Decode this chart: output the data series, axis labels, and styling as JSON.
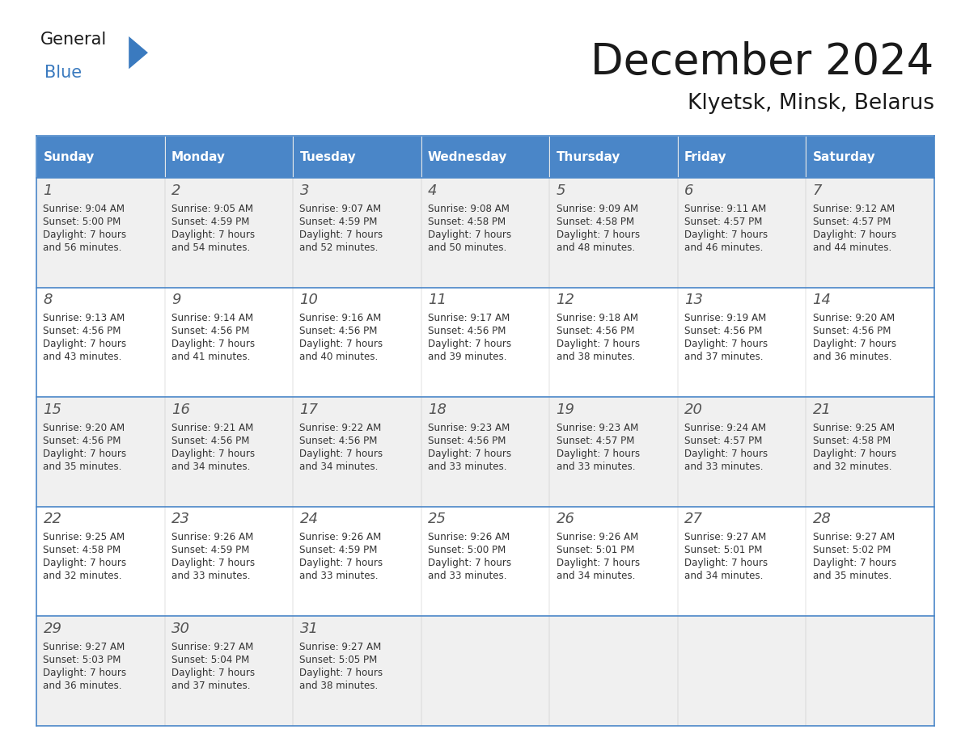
{
  "title": "December 2024",
  "subtitle": "Klyetsk, Minsk, Belarus",
  "days_of_week": [
    "Sunday",
    "Monday",
    "Tuesday",
    "Wednesday",
    "Thursday",
    "Friday",
    "Saturday"
  ],
  "header_bg_color": "#4a86c8",
  "header_text_color": "#ffffff",
  "cell_bg_even": "#f0f0f0",
  "cell_bg_odd": "#ffffff",
  "cell_border_color": "#4a86c8",
  "day_num_color": "#555555",
  "info_text_color": "#333333",
  "title_color": "#1a1a1a",
  "calendar_data": [
    [
      {
        "day": 1,
        "sunrise": "9:04 AM",
        "sunset": "5:00 PM",
        "daylight_line1": "Daylight: 7 hours",
        "daylight_line2": "and 56 minutes."
      },
      {
        "day": 2,
        "sunrise": "9:05 AM",
        "sunset": "4:59 PM",
        "daylight_line1": "Daylight: 7 hours",
        "daylight_line2": "and 54 minutes."
      },
      {
        "day": 3,
        "sunrise": "9:07 AM",
        "sunset": "4:59 PM",
        "daylight_line1": "Daylight: 7 hours",
        "daylight_line2": "and 52 minutes."
      },
      {
        "day": 4,
        "sunrise": "9:08 AM",
        "sunset": "4:58 PM",
        "daylight_line1": "Daylight: 7 hours",
        "daylight_line2": "and 50 minutes."
      },
      {
        "day": 5,
        "sunrise": "9:09 AM",
        "sunset": "4:58 PM",
        "daylight_line1": "Daylight: 7 hours",
        "daylight_line2": "and 48 minutes."
      },
      {
        "day": 6,
        "sunrise": "9:11 AM",
        "sunset": "4:57 PM",
        "daylight_line1": "Daylight: 7 hours",
        "daylight_line2": "and 46 minutes."
      },
      {
        "day": 7,
        "sunrise": "9:12 AM",
        "sunset": "4:57 PM",
        "daylight_line1": "Daylight: 7 hours",
        "daylight_line2": "and 44 minutes."
      }
    ],
    [
      {
        "day": 8,
        "sunrise": "9:13 AM",
        "sunset": "4:56 PM",
        "daylight_line1": "Daylight: 7 hours",
        "daylight_line2": "and 43 minutes."
      },
      {
        "day": 9,
        "sunrise": "9:14 AM",
        "sunset": "4:56 PM",
        "daylight_line1": "Daylight: 7 hours",
        "daylight_line2": "and 41 minutes."
      },
      {
        "day": 10,
        "sunrise": "9:16 AM",
        "sunset": "4:56 PM",
        "daylight_line1": "Daylight: 7 hours",
        "daylight_line2": "and 40 minutes."
      },
      {
        "day": 11,
        "sunrise": "9:17 AM",
        "sunset": "4:56 PM",
        "daylight_line1": "Daylight: 7 hours",
        "daylight_line2": "and 39 minutes."
      },
      {
        "day": 12,
        "sunrise": "9:18 AM",
        "sunset": "4:56 PM",
        "daylight_line1": "Daylight: 7 hours",
        "daylight_line2": "and 38 minutes."
      },
      {
        "day": 13,
        "sunrise": "9:19 AM",
        "sunset": "4:56 PM",
        "daylight_line1": "Daylight: 7 hours",
        "daylight_line2": "and 37 minutes."
      },
      {
        "day": 14,
        "sunrise": "9:20 AM",
        "sunset": "4:56 PM",
        "daylight_line1": "Daylight: 7 hours",
        "daylight_line2": "and 36 minutes."
      }
    ],
    [
      {
        "day": 15,
        "sunrise": "9:20 AM",
        "sunset": "4:56 PM",
        "daylight_line1": "Daylight: 7 hours",
        "daylight_line2": "and 35 minutes."
      },
      {
        "day": 16,
        "sunrise": "9:21 AM",
        "sunset": "4:56 PM",
        "daylight_line1": "Daylight: 7 hours",
        "daylight_line2": "and 34 minutes."
      },
      {
        "day": 17,
        "sunrise": "9:22 AM",
        "sunset": "4:56 PM",
        "daylight_line1": "Daylight: 7 hours",
        "daylight_line2": "and 34 minutes."
      },
      {
        "day": 18,
        "sunrise": "9:23 AM",
        "sunset": "4:56 PM",
        "daylight_line1": "Daylight: 7 hours",
        "daylight_line2": "and 33 minutes."
      },
      {
        "day": 19,
        "sunrise": "9:23 AM",
        "sunset": "4:57 PM",
        "daylight_line1": "Daylight: 7 hours",
        "daylight_line2": "and 33 minutes."
      },
      {
        "day": 20,
        "sunrise": "9:24 AM",
        "sunset": "4:57 PM",
        "daylight_line1": "Daylight: 7 hours",
        "daylight_line2": "and 33 minutes."
      },
      {
        "day": 21,
        "sunrise": "9:25 AM",
        "sunset": "4:58 PM",
        "daylight_line1": "Daylight: 7 hours",
        "daylight_line2": "and 32 minutes."
      }
    ],
    [
      {
        "day": 22,
        "sunrise": "9:25 AM",
        "sunset": "4:58 PM",
        "daylight_line1": "Daylight: 7 hours",
        "daylight_line2": "and 32 minutes."
      },
      {
        "day": 23,
        "sunrise": "9:26 AM",
        "sunset": "4:59 PM",
        "daylight_line1": "Daylight: 7 hours",
        "daylight_line2": "and 33 minutes."
      },
      {
        "day": 24,
        "sunrise": "9:26 AM",
        "sunset": "4:59 PM",
        "daylight_line1": "Daylight: 7 hours",
        "daylight_line2": "and 33 minutes."
      },
      {
        "day": 25,
        "sunrise": "9:26 AM",
        "sunset": "5:00 PM",
        "daylight_line1": "Daylight: 7 hours",
        "daylight_line2": "and 33 minutes."
      },
      {
        "day": 26,
        "sunrise": "9:26 AM",
        "sunset": "5:01 PM",
        "daylight_line1": "Daylight: 7 hours",
        "daylight_line2": "and 34 minutes."
      },
      {
        "day": 27,
        "sunrise": "9:27 AM",
        "sunset": "5:01 PM",
        "daylight_line1": "Daylight: 7 hours",
        "daylight_line2": "and 34 minutes."
      },
      {
        "day": 28,
        "sunrise": "9:27 AM",
        "sunset": "5:02 PM",
        "daylight_line1": "Daylight: 7 hours",
        "daylight_line2": "and 35 minutes."
      }
    ],
    [
      {
        "day": 29,
        "sunrise": "9:27 AM",
        "sunset": "5:03 PM",
        "daylight_line1": "Daylight: 7 hours",
        "daylight_line2": "and 36 minutes."
      },
      {
        "day": 30,
        "sunrise": "9:27 AM",
        "sunset": "5:04 PM",
        "daylight_line1": "Daylight: 7 hours",
        "daylight_line2": "and 37 minutes."
      },
      {
        "day": 31,
        "sunrise": "9:27 AM",
        "sunset": "5:05 PM",
        "daylight_line1": "Daylight: 7 hours",
        "daylight_line2": "and 38 minutes."
      },
      null,
      null,
      null,
      null
    ]
  ],
  "logo_general_color": "#1a1a1a",
  "logo_blue_color": "#3a7abf",
  "logo_triangle_color": "#3a7abf"
}
